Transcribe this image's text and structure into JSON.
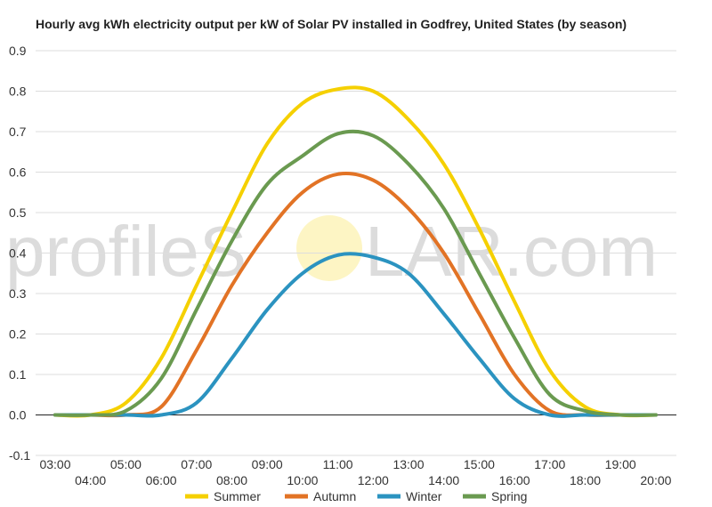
{
  "chart_data": {
    "type": "line",
    "title": "Hourly avg kWh electricity output per kW of Solar PV installed in Godfrey, United States (by season)",
    "xlabel": "",
    "ylabel": "",
    "ylim": [
      -0.1,
      0.9
    ],
    "yticks": [
      -0.1,
      0.0,
      0.1,
      0.2,
      0.3,
      0.4,
      0.5,
      0.6,
      0.7,
      0.8,
      0.9
    ],
    "ytick_labels": [
      "-0.1",
      "0.0",
      "0.1",
      "0.2",
      "0.3",
      "0.4",
      "0.5",
      "0.6",
      "0.7",
      "0.8",
      "0.9"
    ],
    "x": [
      "03:00",
      "04:00",
      "05:00",
      "06:00",
      "07:00",
      "08:00",
      "09:00",
      "10:00",
      "11:00",
      "12:00",
      "13:00",
      "14:00",
      "15:00",
      "16:00",
      "17:00",
      "18:00",
      "19:00",
      "20:00"
    ],
    "grid": true,
    "legend_position": "bottom",
    "series": [
      {
        "name": "Summer",
        "color": "#f5d000",
        "values": [
          0.0,
          0.0,
          0.03,
          0.14,
          0.32,
          0.5,
          0.67,
          0.77,
          0.805,
          0.8,
          0.73,
          0.62,
          0.46,
          0.28,
          0.11,
          0.02,
          0.0,
          0.0
        ]
      },
      {
        "name": "Autumn",
        "color": "#e27325",
        "values": [
          0.0,
          0.0,
          0.0,
          0.02,
          0.16,
          0.32,
          0.45,
          0.55,
          0.595,
          0.58,
          0.51,
          0.4,
          0.25,
          0.1,
          0.01,
          0.0,
          0.0,
          0.0
        ]
      },
      {
        "name": "Winter",
        "color": "#2b93c0",
        "values": [
          0.0,
          0.0,
          0.0,
          0.0,
          0.03,
          0.14,
          0.26,
          0.35,
          0.395,
          0.39,
          0.35,
          0.25,
          0.14,
          0.04,
          0.0,
          0.0,
          0.0,
          0.0
        ]
      },
      {
        "name": "Spring",
        "color": "#6a9a50",
        "values": [
          0.0,
          0.0,
          0.01,
          0.09,
          0.26,
          0.43,
          0.57,
          0.64,
          0.695,
          0.69,
          0.62,
          0.51,
          0.35,
          0.19,
          0.05,
          0.01,
          0.0,
          0.0
        ]
      }
    ]
  },
  "watermark": {
    "before": "profileS",
    "after": "LAR.com"
  }
}
